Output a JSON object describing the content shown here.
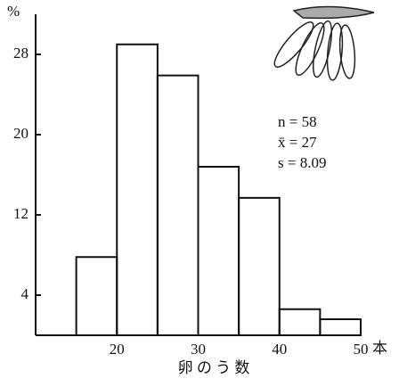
{
  "chart_data": {
    "type": "histogram",
    "bins": [
      15,
      20,
      25,
      30,
      35,
      40,
      45,
      50
    ],
    "values": [
      7.8,
      29,
      25.9,
      16.8,
      13.7,
      2.6,
      1.6
    ],
    "color": "#111111",
    "xlim": [
      10,
      50
    ],
    "xticks": [
      20,
      30,
      40,
      50
    ],
    "ylim": [
      0,
      32
    ],
    "yticks": [
      4,
      12,
      20,
      28
    ],
    "xlabel": "卵 の う 数",
    "x_unit": "本",
    "y_unit": "%",
    "annotations": [
      "n = 58",
      "x̄ = 27",
      "s = 8.09"
    ]
  }
}
